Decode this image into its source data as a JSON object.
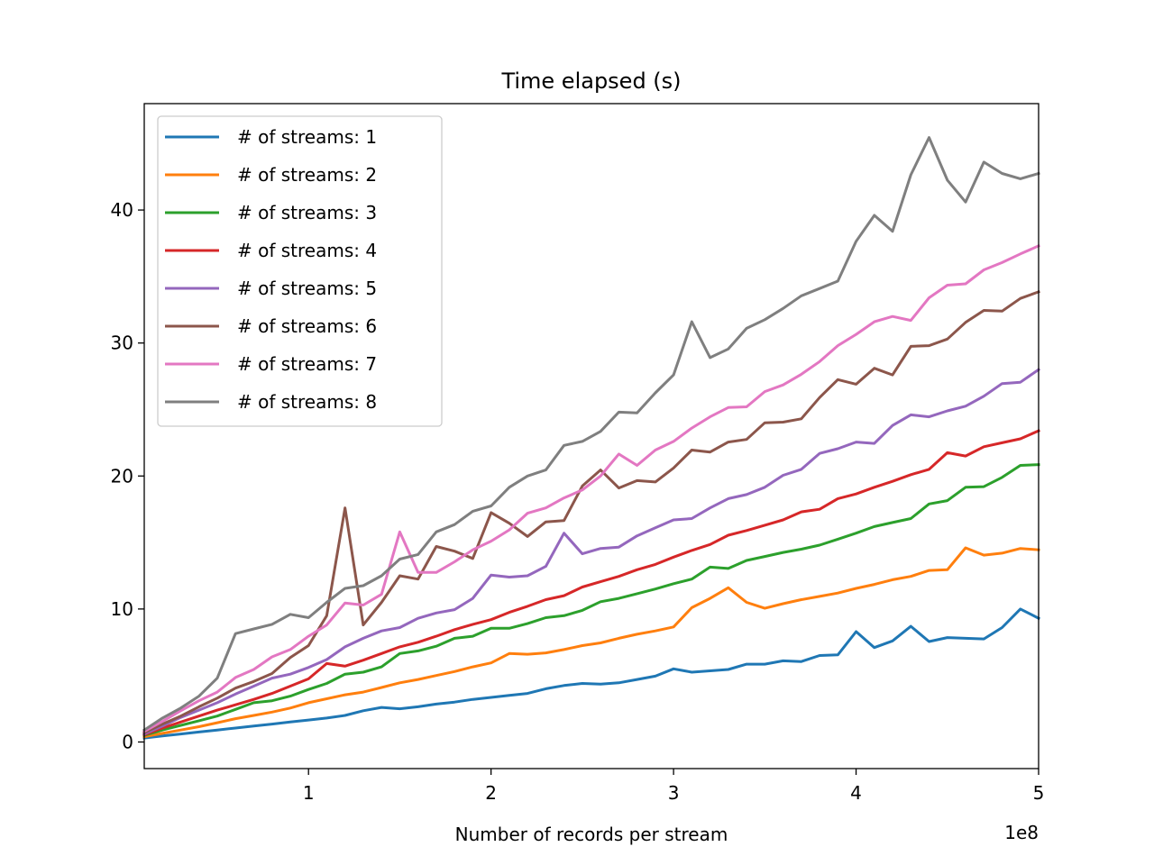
{
  "chart_data": {
    "type": "line",
    "title": "Time elapsed (s)",
    "xlabel": "Number of records per stream",
    "ylabel": "",
    "x_offset_label": "1e8",
    "xlim": [
      10000000,
      500000000
    ],
    "ylim": [
      -2,
      48
    ],
    "x_ticks": [
      1,
      2,
      3,
      4,
      5
    ],
    "y_ticks": [
      0,
      10,
      20,
      30,
      40
    ],
    "grid": false,
    "legend_position": "top-left",
    "x": [
      10000000,
      20000000,
      30000000,
      40000000,
      50000000,
      60000000,
      70000000,
      80000000,
      90000000,
      100000000,
      110000000,
      120000000,
      130000000,
      140000000,
      150000000,
      160000000,
      170000000,
      180000000,
      190000000,
      200000000,
      210000000,
      220000000,
      230000000,
      240000000,
      250000000,
      260000000,
      270000000,
      280000000,
      290000000,
      300000000,
      310000000,
      320000000,
      330000000,
      340000000,
      350000000,
      360000000,
      370000000,
      380000000,
      390000000,
      400000000,
      410000000,
      420000000,
      430000000,
      440000000,
      450000000,
      460000000,
      470000000,
      480000000,
      490000000,
      500000000
    ],
    "series": [
      {
        "name": "# of streams: 1",
        "color": "#1f77b4",
        "values": [
          0.3,
          0.45,
          0.6,
          0.75,
          0.9,
          1.05,
          1.2,
          1.35,
          1.5,
          1.65,
          1.8,
          2.0,
          2.35,
          2.6,
          2.5,
          2.65,
          2.85,
          3.0,
          3.2,
          3.35,
          3.5,
          3.65,
          4.0,
          4.25,
          4.4,
          4.35,
          4.45,
          4.7,
          4.95,
          5.5,
          5.25,
          5.35,
          5.45,
          5.85,
          5.85,
          6.1,
          6.05,
          6.5,
          6.55,
          8.3,
          7.1,
          7.6,
          8.7,
          7.55,
          7.85,
          7.8,
          7.75,
          8.6,
          10.0,
          9.3
        ]
      },
      {
        "name": "# of streams: 2",
        "color": "#ff7f0e",
        "values": [
          0.4,
          0.65,
          0.9,
          1.15,
          1.45,
          1.75,
          2.0,
          2.25,
          2.55,
          2.95,
          3.25,
          3.55,
          3.75,
          4.1,
          4.45,
          4.7,
          5.0,
          5.3,
          5.65,
          5.95,
          6.65,
          6.6,
          6.7,
          6.95,
          7.25,
          7.45,
          7.8,
          8.1,
          8.35,
          8.65,
          10.1,
          10.8,
          11.6,
          10.5,
          10.05,
          10.4,
          10.7,
          10.95,
          11.2,
          11.55,
          11.85,
          12.2,
          12.45,
          12.9,
          12.95,
          14.6,
          14.05,
          14.2,
          14.55,
          14.45
        ]
      },
      {
        "name": "# of streams: 3",
        "color": "#2ca02c",
        "values": [
          0.5,
          0.9,
          1.25,
          1.6,
          1.95,
          2.45,
          2.95,
          3.1,
          3.45,
          3.95,
          4.4,
          5.1,
          5.25,
          5.65,
          6.65,
          6.85,
          7.2,
          7.8,
          7.95,
          8.55,
          8.55,
          8.9,
          9.35,
          9.5,
          9.9,
          10.55,
          10.8,
          11.15,
          11.5,
          11.9,
          12.25,
          13.15,
          13.05,
          13.65,
          13.95,
          14.25,
          14.5,
          14.8,
          15.25,
          15.7,
          16.2,
          16.5,
          16.8,
          17.9,
          18.15,
          19.15,
          19.2,
          19.9,
          20.8,
          20.85
        ]
      },
      {
        "name": "# of streams: 4",
        "color": "#d62728",
        "values": [
          0.55,
          1.05,
          1.5,
          1.95,
          2.4,
          2.8,
          3.2,
          3.65,
          4.2,
          4.75,
          5.9,
          5.7,
          6.15,
          6.65,
          7.15,
          7.5,
          7.95,
          8.45,
          8.85,
          9.2,
          9.75,
          10.2,
          10.7,
          11.0,
          11.65,
          12.05,
          12.45,
          12.95,
          13.35,
          13.9,
          14.4,
          14.85,
          15.55,
          15.9,
          16.3,
          16.7,
          17.3,
          17.5,
          18.3,
          18.65,
          19.15,
          19.6,
          20.1,
          20.5,
          21.75,
          21.5,
          22.2,
          22.5,
          22.8,
          23.4
        ]
      },
      {
        "name": "# of streams: 5",
        "color": "#9467bd",
        "values": [
          0.6,
          1.2,
          1.85,
          2.4,
          2.95,
          3.6,
          4.2,
          4.8,
          5.1,
          5.6,
          6.2,
          7.15,
          7.8,
          8.35,
          8.6,
          9.3,
          9.7,
          9.95,
          10.8,
          12.55,
          12.4,
          12.5,
          13.2,
          15.7,
          14.15,
          14.55,
          14.65,
          15.5,
          16.1,
          16.7,
          16.8,
          17.6,
          18.3,
          18.6,
          19.15,
          20.05,
          20.5,
          21.7,
          22.05,
          22.55,
          22.45,
          23.8,
          24.6,
          24.45,
          24.9,
          25.25,
          26.0,
          26.95,
          27.05,
          28.0
        ]
      },
      {
        "name": "# of streams: 6",
        "color": "#8c564b",
        "values": [
          0.7,
          1.35,
          1.95,
          2.65,
          3.3,
          4.05,
          4.55,
          5.15,
          6.35,
          7.25,
          9.5,
          17.6,
          8.8,
          10.5,
          12.5,
          12.25,
          14.7,
          14.35,
          13.8,
          17.25,
          16.45,
          15.45,
          16.55,
          16.65,
          19.25,
          20.45,
          19.1,
          19.65,
          19.55,
          20.6,
          21.95,
          21.8,
          22.55,
          22.75,
          24.0,
          24.05,
          24.3,
          25.9,
          27.25,
          26.9,
          28.1,
          27.6,
          29.75,
          29.8,
          30.3,
          31.55,
          32.45,
          32.4,
          33.35,
          33.85
        ]
      },
      {
        "name": "# of streams: 7",
        "color": "#e377c2",
        "values": [
          0.8,
          1.55,
          2.35,
          3.1,
          3.75,
          4.85,
          5.45,
          6.4,
          6.95,
          7.95,
          8.8,
          10.45,
          10.3,
          11.1,
          15.8,
          12.75,
          12.75,
          13.55,
          14.45,
          15.1,
          15.95,
          17.2,
          17.6,
          18.35,
          18.95,
          20.0,
          21.65,
          20.8,
          21.95,
          22.6,
          23.6,
          24.45,
          25.15,
          25.2,
          26.35,
          26.85,
          27.65,
          28.6,
          29.8,
          30.65,
          31.6,
          32.0,
          31.7,
          33.4,
          34.35,
          34.45,
          35.5,
          36.05,
          36.7,
          37.3
        ]
      },
      {
        "name": "# of streams: 8",
        "color": "#7f7f7f",
        "values": [
          0.9,
          1.8,
          2.55,
          3.45,
          4.8,
          8.15,
          8.5,
          8.85,
          9.6,
          9.35,
          10.5,
          11.55,
          11.75,
          12.5,
          13.75,
          14.1,
          15.8,
          16.35,
          17.35,
          17.75,
          19.15,
          20.0,
          20.45,
          22.3,
          22.6,
          23.35,
          24.8,
          24.75,
          26.25,
          27.6,
          31.6,
          28.9,
          29.55,
          31.1,
          31.75,
          32.6,
          33.55,
          34.1,
          34.65,
          37.65,
          39.6,
          38.4,
          42.65,
          45.45,
          42.25,
          40.6,
          43.6,
          42.75,
          42.35,
          42.75
        ]
      }
    ]
  }
}
